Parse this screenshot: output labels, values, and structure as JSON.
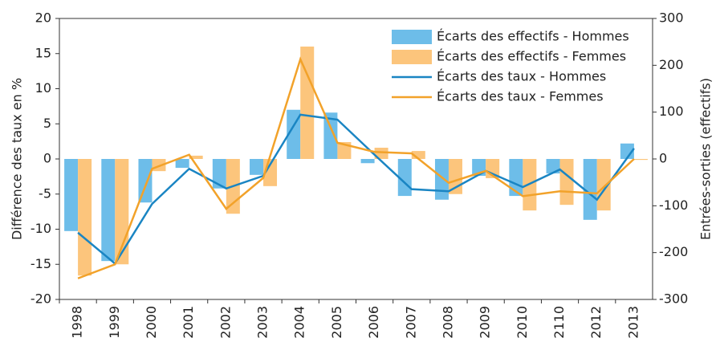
{
  "chart_data": {
    "type": "bar",
    "categories": [
      "1998",
      "1999",
      "2000",
      "2001",
      "2002",
      "2003",
      "2004",
      "2005",
      "2006",
      "2007",
      "2008",
      "2009",
      "2010",
      "2110",
      "2012",
      "2013"
    ],
    "ylabel": "Différence des taux en %",
    "y2label": "Entrées-sorties (effectifs)",
    "ylim": [
      -20,
      20
    ],
    "yticks": [
      -20,
      -15,
      -10,
      -5,
      0,
      5,
      10,
      15,
      20
    ],
    "y2lim": [
      -300,
      300
    ],
    "y2ticks": [
      -300,
      -200,
      -100,
      0,
      100,
      200,
      300
    ],
    "legend": "top-right",
    "series": [
      {
        "name": "Écarts des effectifs - Hommes",
        "type": "bar",
        "axis": "y2",
        "color": "#6dbde9",
        "values": [
          -154,
          -218,
          -93,
          -19,
          -63,
          -34,
          105,
          99,
          -9,
          -79,
          -87,
          -36,
          -79,
          -31,
          -130,
          33
        ]
      },
      {
        "name": "Écarts des effectifs - Femmes",
        "type": "bar",
        "axis": "y2",
        "color": "#fcc57c",
        "values": [
          -249,
          -225,
          -26,
          7,
          -117,
          -58,
          240,
          36,
          24,
          17,
          -75,
          -41,
          -110,
          -98,
          -110,
          -2
        ]
      },
      {
        "name": "Écarts des taux - Hommes",
        "type": "line",
        "color": "#1a85c3",
        "values": [
          -10.5,
          -14.9,
          -6.4,
          -1.4,
          -4.2,
          -2.4,
          6.3,
          5.6,
          0.6,
          -4.3,
          -4.6,
          -1.7,
          -4.0,
          -1.5,
          -5.8,
          1.5
        ]
      },
      {
        "name": "Écarts des taux - Femmes",
        "type": "line",
        "color": "#f2a22a",
        "values": [
          -17,
          -15,
          -1.4,
          0.6,
          -7.1,
          -2.7,
          14.2,
          2.3,
          1.0,
          0.8,
          -3.4,
          -1.7,
          -5.3,
          -4.6,
          -4.9,
          0
        ]
      }
    ]
  }
}
